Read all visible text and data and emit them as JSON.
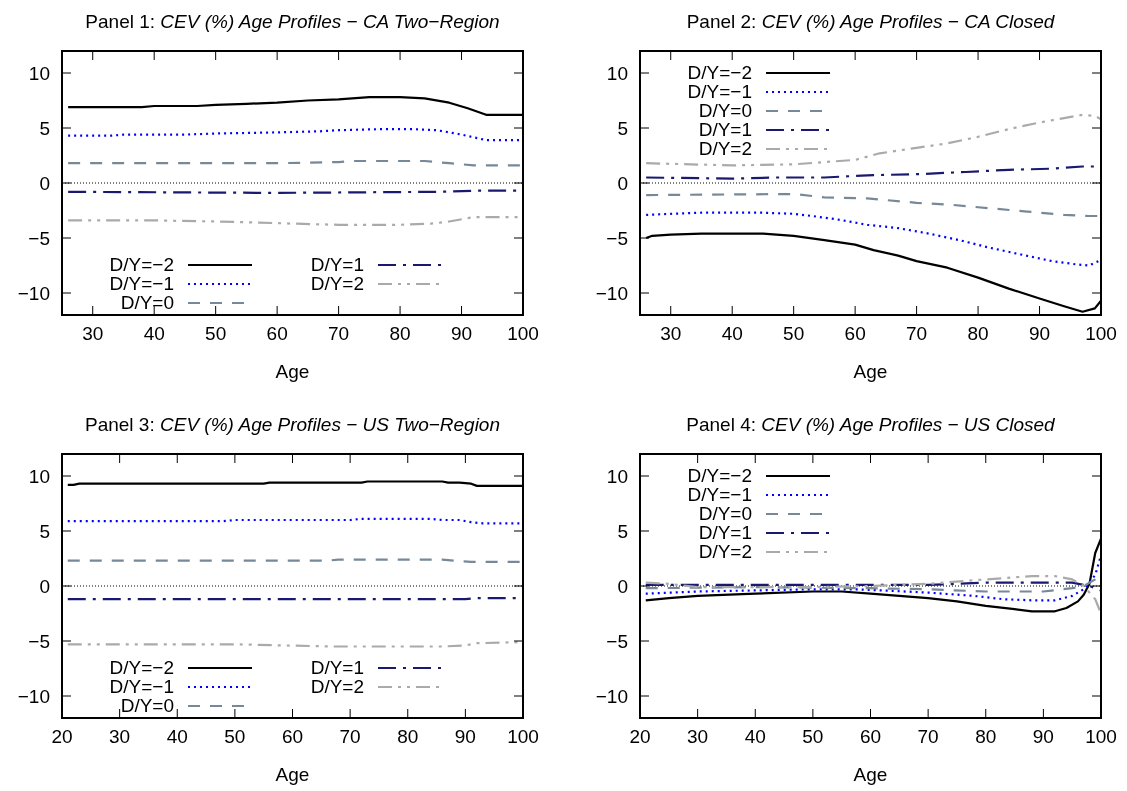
{
  "chart_data": [
    {
      "type": "line",
      "title": "Panel 1: CEV (%) Age Profiles − CA Two−Region",
      "xlabel": "Age",
      "xlim": [
        25,
        100
      ],
      "xticks": [
        30,
        40,
        50,
        60,
        70,
        80,
        90,
        100
      ],
      "ylim": [
        -12,
        12
      ],
      "yticks": [
        -10,
        -5,
        0,
        5,
        10
      ],
      "grid": false,
      "legend": "bottom left",
      "ref_lines": [
        {
          "axis": "y",
          "value": 0,
          "color": "#000000",
          "line_style": "dotted"
        }
      ],
      "series": [
        {
          "name": "D/Y=−2",
          "color": "#000000",
          "line_style": "solid",
          "x": [
            26,
            38,
            40,
            47,
            50,
            55,
            60,
            65,
            70,
            75,
            80,
            84,
            88,
            91,
            94,
            100
          ],
          "values": [
            6.9,
            6.9,
            7.0,
            7.0,
            7.1,
            7.2,
            7.3,
            7.5,
            7.6,
            7.8,
            7.8,
            7.7,
            7.3,
            6.8,
            6.2,
            6.2
          ]
        },
        {
          "name": "D/Y=−1",
          "color": "#0000ff",
          "line_style": "dotted",
          "x": [
            26,
            33,
            35,
            45,
            50,
            60,
            67,
            70,
            77,
            82,
            86,
            90,
            94,
            100
          ],
          "values": [
            4.3,
            4.3,
            4.4,
            4.4,
            4.5,
            4.6,
            4.7,
            4.8,
            4.9,
            4.9,
            4.8,
            4.4,
            3.9,
            3.9
          ]
        },
        {
          "name": "D/Y=0",
          "color": "#778899",
          "line_style": "dashed",
          "x": [
            26,
            60,
            70,
            72,
            84,
            88,
            92,
            100
          ],
          "values": [
            1.8,
            1.8,
            1.9,
            2.0,
            2.0,
            1.8,
            1.6,
            1.6
          ]
        },
        {
          "name": "D/Y=1",
          "color": "#191970",
          "line_style": "dashdot",
          "x": [
            26,
            60,
            86,
            92,
            100
          ],
          "values": [
            -0.8,
            -0.9,
            -0.8,
            -0.7,
            -0.7
          ]
        },
        {
          "name": "D/Y=2",
          "color": "#aaaaaa",
          "line_style": "dashdotdot",
          "x": [
            26,
            40,
            50,
            57,
            63,
            70,
            80,
            85,
            88,
            92,
            100
          ],
          "values": [
            -3.4,
            -3.4,
            -3.5,
            -3.6,
            -3.7,
            -3.8,
            -3.8,
            -3.7,
            -3.5,
            -3.1,
            -3.1
          ]
        }
      ]
    },
    {
      "type": "line",
      "title": "Panel 2: CEV (%) Age Profiles − CA Closed",
      "xlabel": "Age",
      "xlim": [
        25,
        100
      ],
      "xticks": [
        30,
        40,
        50,
        60,
        70,
        80,
        90,
        100
      ],
      "ylim": [
        -12,
        12
      ],
      "yticks": [
        -10,
        -5,
        0,
        5,
        10
      ],
      "grid": false,
      "legend": "top left",
      "ref_lines": [
        {
          "axis": "y",
          "value": 0,
          "color": "#000000",
          "line_style": "dotted"
        }
      ],
      "series": [
        {
          "name": "D/Y=−2",
          "color": "#000000",
          "line_style": "solid",
          "x": [
            26,
            27,
            30,
            35,
            45,
            50,
            55,
            60,
            63,
            67,
            70,
            75,
            80,
            85,
            90,
            94,
            97,
            99,
            100
          ],
          "values": [
            -5.0,
            -4.8,
            -4.7,
            -4.6,
            -4.6,
            -4.8,
            -5.2,
            -5.6,
            -6.1,
            -6.6,
            -7.1,
            -7.7,
            -8.6,
            -9.6,
            -10.5,
            -11.2,
            -11.7,
            -11.4,
            -10.7
          ]
        },
        {
          "name": "D/Y=−1",
          "color": "#0000ff",
          "line_style": "dotted",
          "x": [
            26,
            30,
            35,
            45,
            50,
            53,
            57,
            62,
            67,
            72,
            77,
            82,
            87,
            92,
            96,
            98,
            100
          ],
          "values": [
            -2.9,
            -2.8,
            -2.7,
            -2.7,
            -2.8,
            -3.0,
            -3.3,
            -3.8,
            -4.1,
            -4.6,
            -5.2,
            -5.9,
            -6.5,
            -7.1,
            -7.4,
            -7.5,
            -7.0
          ]
        },
        {
          "name": "D/Y=0",
          "color": "#778899",
          "line_style": "dashed",
          "x": [
            26,
            50,
            55,
            62,
            70,
            76,
            82,
            88,
            94,
            98,
            100
          ],
          "values": [
            -1.1,
            -1.0,
            -1.3,
            -1.4,
            -1.8,
            -2.0,
            -2.3,
            -2.6,
            -2.9,
            -3.0,
            -3.0
          ]
        },
        {
          "name": "D/Y=1",
          "color": "#191970",
          "line_style": "dashdot",
          "x": [
            26,
            40,
            47,
            55,
            62,
            70,
            78,
            85,
            92,
            97,
            100
          ],
          "values": [
            0.5,
            0.4,
            0.5,
            0.5,
            0.7,
            0.8,
            1.0,
            1.2,
            1.3,
            1.5,
            1.5
          ]
        },
        {
          "name": "D/Y=2",
          "color": "#aaaaaa",
          "line_style": "dashdotdot",
          "x": [
            26,
            40,
            50,
            55,
            60,
            64,
            70,
            75,
            80,
            85,
            90,
            94,
            97,
            99,
            100
          ],
          "values": [
            1.8,
            1.6,
            1.7,
            1.9,
            2.1,
            2.7,
            3.2,
            3.6,
            4.2,
            4.9,
            5.5,
            5.9,
            6.2,
            6.1,
            5.8
          ]
        }
      ]
    },
    {
      "type": "line",
      "title": "Panel 3: CEV (%) Age Profiles − US Two−Region",
      "xlabel": "Age",
      "xlim": [
        20,
        100
      ],
      "xticks": [
        20,
        30,
        40,
        50,
        60,
        70,
        80,
        90,
        100
      ],
      "ylim": [
        -12,
        12
      ],
      "yticks": [
        -10,
        -5,
        0,
        5,
        10
      ],
      "grid": false,
      "legend": "bottom left",
      "ref_lines": [
        {
          "axis": "y",
          "value": 0,
          "color": "#000000",
          "line_style": "dotted"
        }
      ],
      "series": [
        {
          "name": "D/Y=−2",
          "color": "#000000",
          "line_style": "solid",
          "x": [
            21,
            22,
            23,
            55,
            56,
            72,
            73,
            86,
            87,
            89,
            91,
            92,
            100
          ],
          "values": [
            9.2,
            9.2,
            9.3,
            9.3,
            9.4,
            9.4,
            9.5,
            9.5,
            9.4,
            9.4,
            9.3,
            9.1,
            9.1
          ]
        },
        {
          "name": "D/Y=−1",
          "color": "#0000ff",
          "line_style": "dotted",
          "x": [
            21,
            48,
            50,
            70,
            72,
            84,
            86,
            89,
            91,
            93,
            100
          ],
          "values": [
            5.9,
            5.9,
            6.0,
            6.0,
            6.1,
            6.1,
            6.0,
            6.0,
            5.8,
            5.7,
            5.7
          ]
        },
        {
          "name": "D/Y=0",
          "color": "#778899",
          "line_style": "dashed",
          "x": [
            21,
            66,
            68,
            86,
            88,
            91,
            100
          ],
          "values": [
            2.3,
            2.3,
            2.4,
            2.4,
            2.3,
            2.2,
            2.2
          ]
        },
        {
          "name": "D/Y=1",
          "color": "#191970",
          "line_style": "dashdot",
          "x": [
            21,
            90,
            92,
            100
          ],
          "values": [
            -1.2,
            -1.2,
            -1.1,
            -1.1
          ]
        },
        {
          "name": "D/Y=2",
          "color": "#aaaaaa",
          "line_style": "dashdotdot",
          "x": [
            21,
            50,
            58,
            67,
            86,
            90,
            92,
            100
          ],
          "values": [
            -5.3,
            -5.3,
            -5.4,
            -5.5,
            -5.5,
            -5.4,
            -5.2,
            -5.1
          ]
        }
      ]
    },
    {
      "type": "line",
      "title": "Panel 4: CEV (%) Age Profiles − US Closed",
      "xlabel": "Age",
      "xlim": [
        20,
        100
      ],
      "xticks": [
        20,
        30,
        40,
        50,
        60,
        70,
        80,
        90,
        100
      ],
      "ylim": [
        -12,
        12
      ],
      "yticks": [
        -10,
        -5,
        0,
        5,
        10
      ],
      "grid": false,
      "legend": "top left",
      "ref_lines": [
        {
          "axis": "y",
          "value": 0,
          "color": "#000000",
          "line_style": "dotted"
        }
      ],
      "series": [
        {
          "name": "D/Y=−2",
          "color": "#000000",
          "line_style": "solid",
          "x": [
            21,
            25,
            30,
            40,
            50,
            55,
            60,
            65,
            70,
            75,
            80,
            85,
            88,
            92,
            94,
            96,
            97,
            98,
            99,
            100
          ],
          "values": [
            -1.3,
            -1.1,
            -0.9,
            -0.7,
            -0.5,
            -0.5,
            -0.7,
            -0.9,
            -1.1,
            -1.4,
            -1.8,
            -2.1,
            -2.3,
            -2.3,
            -2.0,
            -1.4,
            -0.8,
            0.2,
            3.0,
            4.3
          ]
        },
        {
          "name": "D/Y=−1",
          "color": "#0000ff",
          "line_style": "dotted",
          "x": [
            21,
            30,
            40,
            50,
            57,
            62,
            70,
            78,
            83,
            88,
            92,
            95,
            97,
            99,
            100
          ],
          "values": [
            -0.7,
            -0.5,
            -0.4,
            -0.3,
            -0.3,
            -0.4,
            -0.6,
            -0.9,
            -1.2,
            -1.3,
            -1.3,
            -0.9,
            -0.3,
            1.0,
            2.8
          ]
        },
        {
          "name": "D/Y=0",
          "color": "#778899",
          "line_style": "dashed",
          "x": [
            21,
            40,
            60,
            70,
            80,
            90,
            95,
            97,
            99,
            100
          ],
          "values": [
            -0.2,
            -0.1,
            -0.2,
            -0.3,
            -0.5,
            -0.5,
            -0.2,
            0,
            0.6,
            1.2
          ]
        },
        {
          "name": "D/Y=1",
          "color": "#191970",
          "line_style": "dashdot",
          "x": [
            21,
            60,
            70,
            80,
            90,
            95,
            97,
            98,
            100
          ],
          "values": [
            0.1,
            0.1,
            0.1,
            0.3,
            0.3,
            0.3,
            0.1,
            0,
            -0.4
          ]
        },
        {
          "name": "D/Y=2",
          "color": "#aaaaaa",
          "line_style": "dashdotdot",
          "x": [
            21,
            25,
            30,
            40,
            50,
            60,
            70,
            80,
            88,
            92,
            95,
            97,
            99,
            100
          ],
          "values": [
            0.3,
            0.2,
            -0.1,
            -0.1,
            -0.1,
            0,
            0.2,
            0.6,
            0.9,
            0.9,
            0.6,
            0,
            -1.2,
            -2.5
          ]
        }
      ]
    }
  ]
}
